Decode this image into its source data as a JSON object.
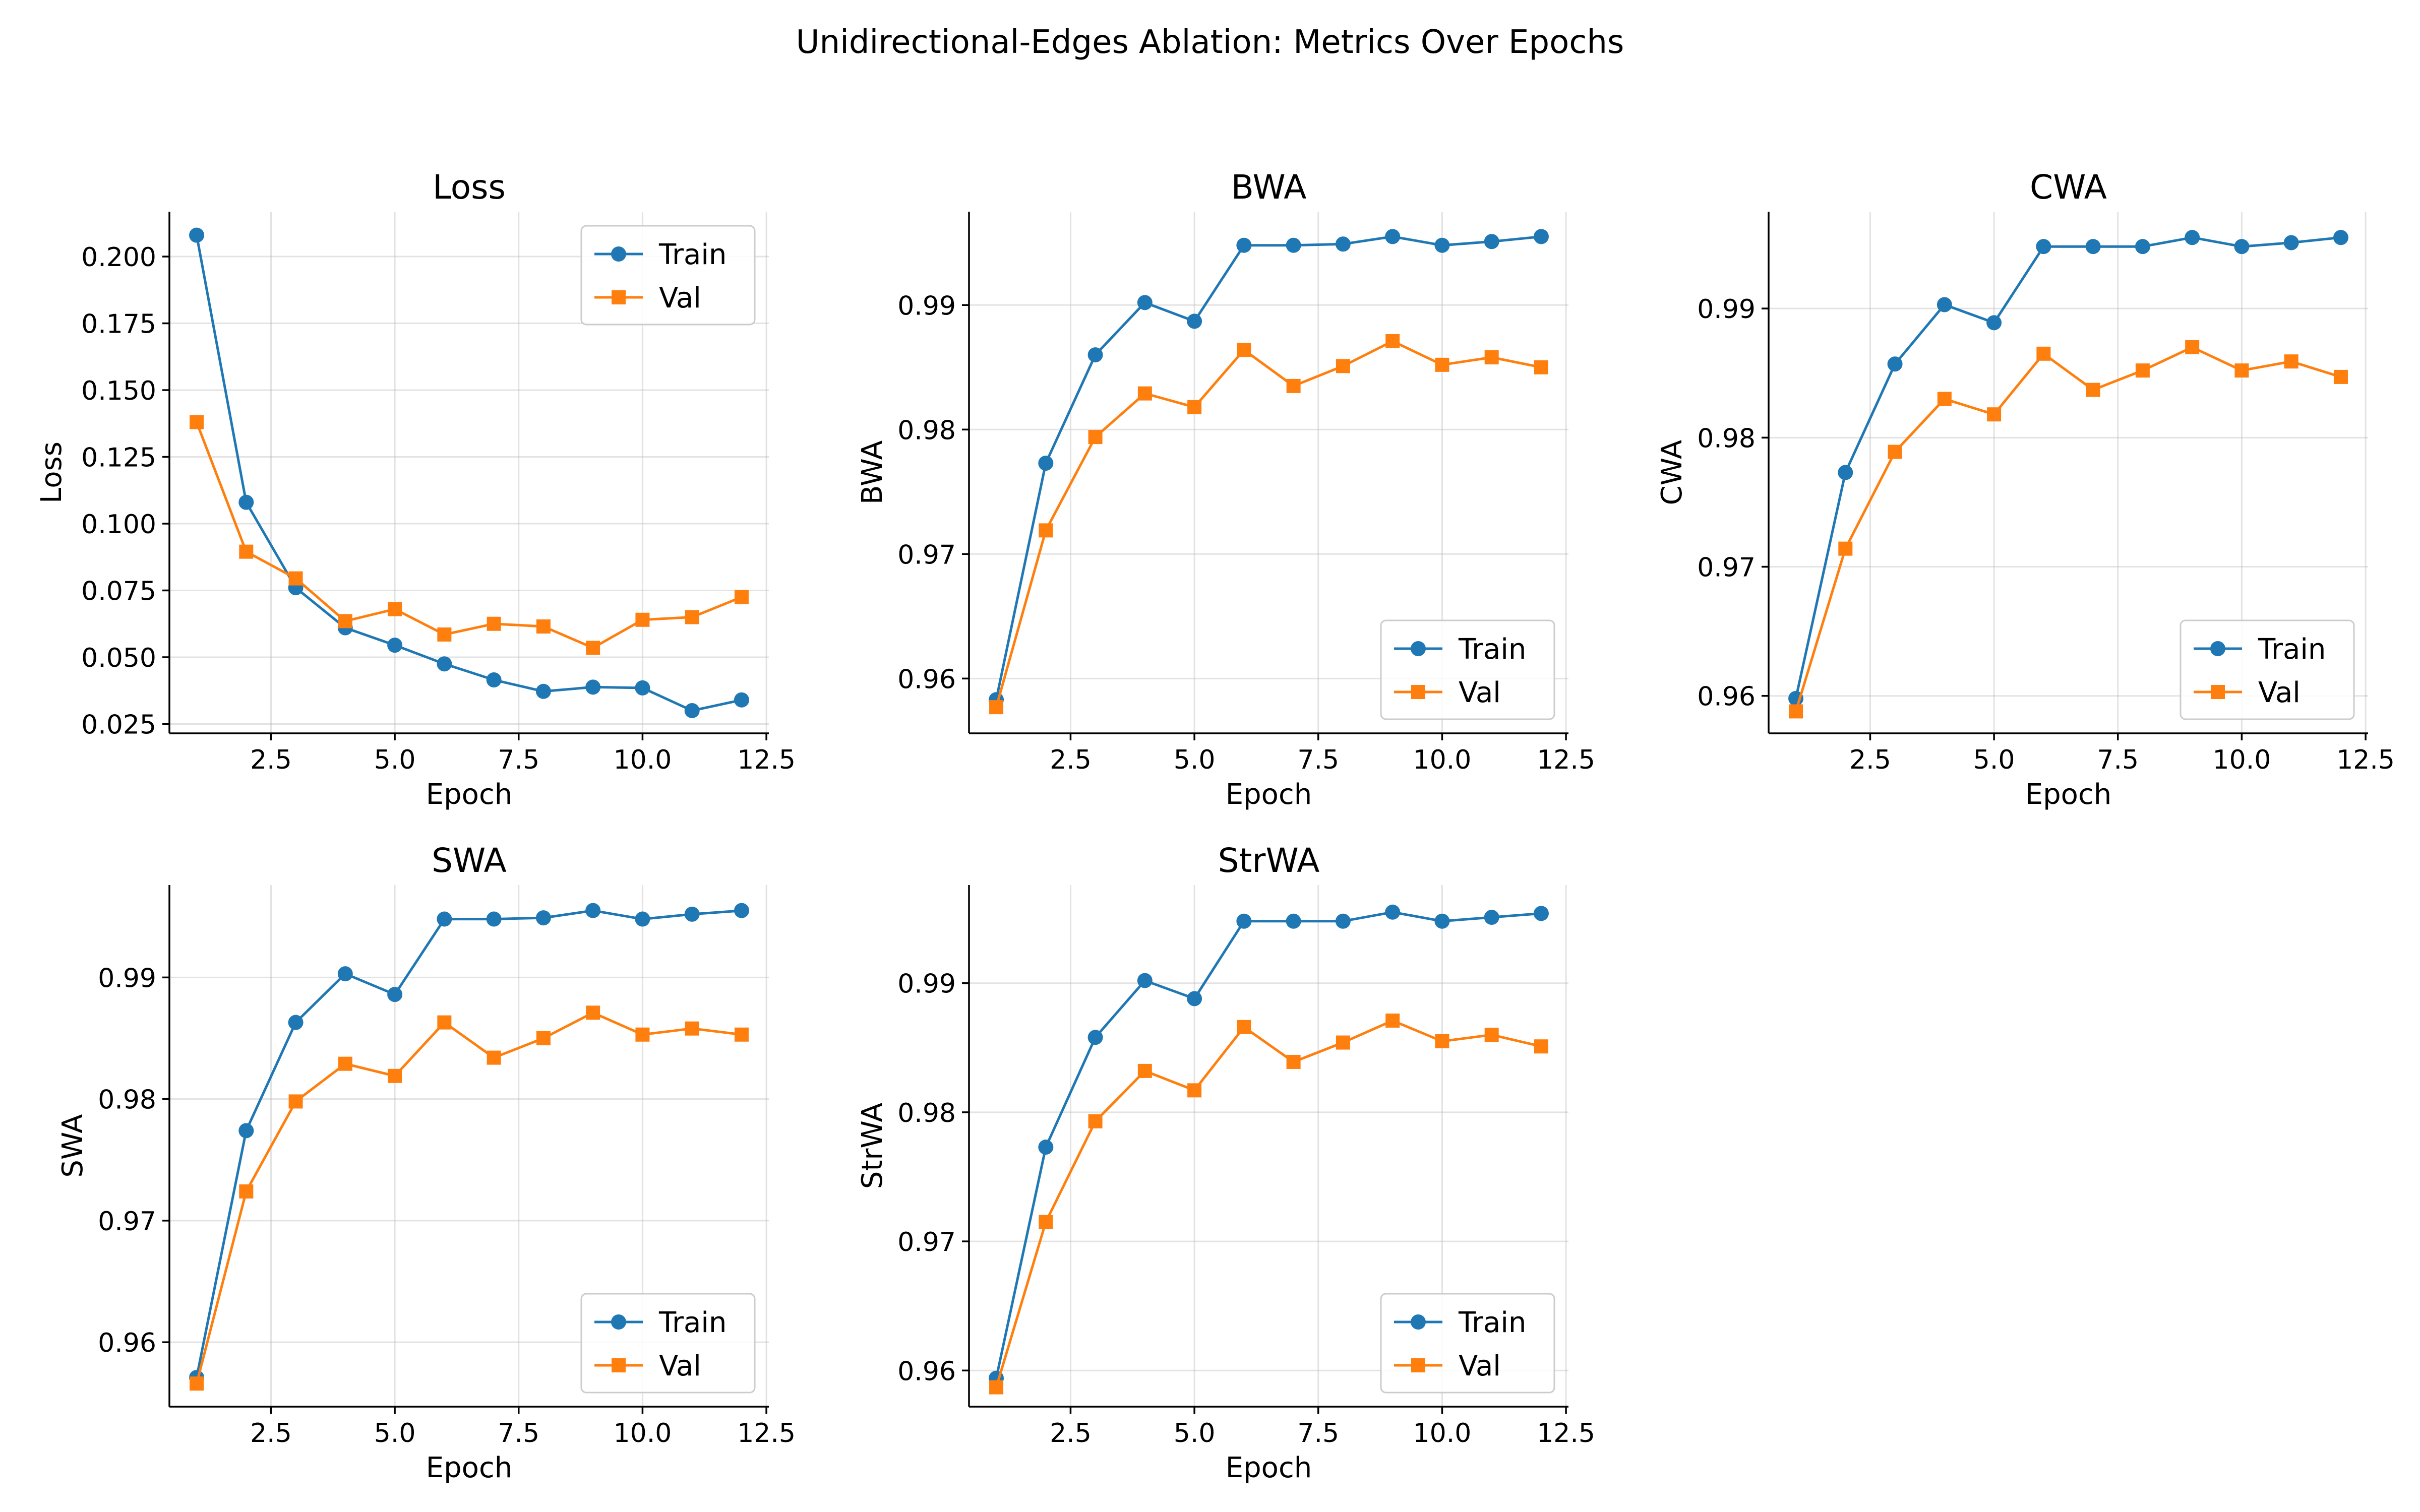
{
  "figure": {
    "title": "Unidirectional-Edges Ablation: Metrics Over Epochs"
  },
  "colors": {
    "train": "#1f77b4",
    "val": "#ff7f0e"
  },
  "chart_data": [
    {
      "type": "line",
      "title": "Loss",
      "xlabel": "Epoch",
      "ylabel": "Loss",
      "xlim": [
        0.45,
        12.55
      ],
      "ylim": [
        0.0215,
        0.2168
      ],
      "xticks": [
        2.5,
        5.0,
        7.5,
        10.0,
        12.5
      ],
      "xtick_labels": [
        "2.5",
        "5.0",
        "7.5",
        "10.0",
        "12.5"
      ],
      "yticks": [
        0.025,
        0.05,
        0.075,
        0.1,
        0.125,
        0.15,
        0.175,
        0.2
      ],
      "ytick_labels": [
        "0.025",
        "0.050",
        "0.075",
        "0.100",
        "0.125",
        "0.150",
        "0.175",
        "0.200"
      ],
      "grid": true,
      "legend": "upper right",
      "x": [
        1,
        2,
        3,
        4,
        5,
        6,
        7,
        8,
        9,
        10,
        11,
        12
      ],
      "series": [
        {
          "name": "Train",
          "marker": "circle",
          "values": [
            0.208,
            0.108,
            0.076,
            0.061,
            0.0545,
            0.0475,
            0.0415,
            0.0372,
            0.0388,
            0.0385,
            0.03,
            0.034
          ]
        },
        {
          "name": "Val",
          "marker": "square",
          "values": [
            0.138,
            0.0895,
            0.0795,
            0.0635,
            0.068,
            0.0585,
            0.0625,
            0.0615,
            0.0535,
            0.064,
            0.065,
            0.0725
          ]
        }
      ]
    },
    {
      "type": "line",
      "title": "BWA",
      "xlabel": "Epoch",
      "ylabel": "BWA",
      "xlim": [
        0.45,
        12.55
      ],
      "ylim": [
        0.9556,
        0.9975
      ],
      "xticks": [
        2.5,
        5.0,
        7.5,
        10.0,
        12.5
      ],
      "xtick_labels": [
        "2.5",
        "5.0",
        "7.5",
        "10.0",
        "12.5"
      ],
      "yticks": [
        0.96,
        0.97,
        0.98,
        0.99
      ],
      "ytick_labels": [
        "0.96",
        "0.97",
        "0.98",
        "0.99"
      ],
      "grid": true,
      "legend": "lower right",
      "x": [
        1,
        2,
        3,
        4,
        5,
        6,
        7,
        8,
        9,
        10,
        11,
        12
      ],
      "series": [
        {
          "name": "Train",
          "marker": "circle",
          "values": [
            0.9583,
            0.9773,
            0.986,
            0.9902,
            0.9887,
            0.9948,
            0.9948,
            0.9949,
            0.9955,
            0.9948,
            0.9951,
            0.9955
          ]
        },
        {
          "name": "Val",
          "marker": "square",
          "values": [
            0.9577,
            0.9719,
            0.9794,
            0.9829,
            0.9818,
            0.9864,
            0.9835,
            0.9851,
            0.9871,
            0.9852,
            0.9858,
            0.985
          ]
        }
      ]
    },
    {
      "type": "line",
      "title": "CWA",
      "xlabel": "Epoch",
      "ylabel": "CWA",
      "xlim": [
        0.45,
        12.55
      ],
      "ylim": [
        0.9571,
        0.9975
      ],
      "xticks": [
        2.5,
        5.0,
        7.5,
        10.0,
        12.5
      ],
      "xtick_labels": [
        "2.5",
        "5.0",
        "7.5",
        "10.0",
        "12.5"
      ],
      "yticks": [
        0.96,
        0.97,
        0.98,
        0.99
      ],
      "ytick_labels": [
        "0.96",
        "0.97",
        "0.98",
        "0.99"
      ],
      "grid": true,
      "legend": "lower right",
      "x": [
        1,
        2,
        3,
        4,
        5,
        6,
        7,
        8,
        9,
        10,
        11,
        12
      ],
      "series": [
        {
          "name": "Train",
          "marker": "circle",
          "values": [
            0.9598,
            0.9773,
            0.9857,
            0.9903,
            0.9889,
            0.9948,
            0.9948,
            0.9948,
            0.9955,
            0.9948,
            0.9951,
            0.9955
          ]
        },
        {
          "name": "Val",
          "marker": "square",
          "values": [
            0.9588,
            0.9714,
            0.9789,
            0.983,
            0.9818,
            0.9865,
            0.9837,
            0.9852,
            0.987,
            0.9852,
            0.9859,
            0.9847
          ]
        }
      ]
    },
    {
      "type": "line",
      "title": "SWA",
      "xlabel": "Epoch",
      "ylabel": "SWA",
      "xlim": [
        0.45,
        12.55
      ],
      "ylim": [
        0.9547,
        0.9976
      ],
      "xticks": [
        2.5,
        5.0,
        7.5,
        10.0,
        12.5
      ],
      "xtick_labels": [
        "2.5",
        "5.0",
        "7.5",
        "10.0",
        "12.5"
      ],
      "yticks": [
        0.96,
        0.97,
        0.98,
        0.99
      ],
      "ytick_labels": [
        "0.96",
        "0.97",
        "0.98",
        "0.99"
      ],
      "grid": true,
      "legend": "lower right",
      "x": [
        1,
        2,
        3,
        4,
        5,
        6,
        7,
        8,
        9,
        10,
        11,
        12
      ],
      "series": [
        {
          "name": "Train",
          "marker": "circle",
          "values": [
            0.9571,
            0.9774,
            0.9863,
            0.9903,
            0.9886,
            0.9948,
            0.9948,
            0.9949,
            0.9955,
            0.9948,
            0.9952,
            0.9955
          ]
        },
        {
          "name": "Val",
          "marker": "square",
          "values": [
            0.9566,
            0.9724,
            0.9798,
            0.9829,
            0.9819,
            0.9863,
            0.9834,
            0.985,
            0.9871,
            0.9853,
            0.9858,
            0.9853
          ]
        }
      ]
    },
    {
      "type": "line",
      "title": "StrWA",
      "xlabel": "Epoch",
      "ylabel": "StrWA",
      "xlim": [
        0.45,
        12.55
      ],
      "ylim": [
        0.9572,
        0.9976
      ],
      "xticks": [
        2.5,
        5.0,
        7.5,
        10.0,
        12.5
      ],
      "xtick_labels": [
        "2.5",
        "5.0",
        "7.5",
        "10.0",
        "12.5"
      ],
      "yticks": [
        0.96,
        0.97,
        0.98,
        0.99
      ],
      "ytick_labels": [
        "0.96",
        "0.97",
        "0.98",
        "0.99"
      ],
      "grid": true,
      "legend": "lower right",
      "x": [
        1,
        2,
        3,
        4,
        5,
        6,
        7,
        8,
        9,
        10,
        11,
        12
      ],
      "series": [
        {
          "name": "Train",
          "marker": "circle",
          "values": [
            0.9594,
            0.9773,
            0.9858,
            0.9902,
            0.9888,
            0.9948,
            0.9948,
            0.9948,
            0.9955,
            0.9948,
            0.9951,
            0.9954
          ]
        },
        {
          "name": "Val",
          "marker": "square",
          "values": [
            0.9587,
            0.9715,
            0.9793,
            0.9832,
            0.9817,
            0.9866,
            0.9839,
            0.9854,
            0.9871,
            0.9855,
            0.986,
            0.9851
          ]
        }
      ]
    }
  ]
}
